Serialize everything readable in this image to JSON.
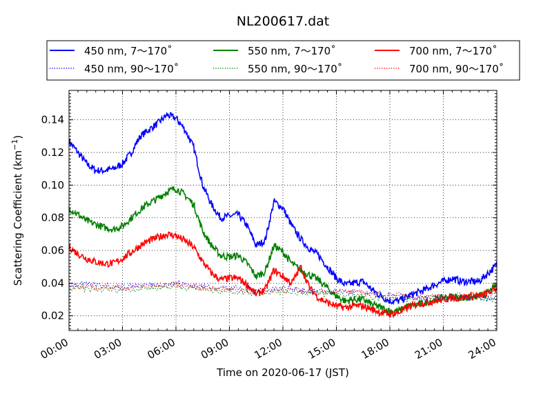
{
  "chart_data": {
    "type": "line",
    "title": "NL200617.dat",
    "xlabel": "Time on 2020-06-17 (JST)",
    "ylabel": "Scattering Coefficient (km",
    "ylabel_sup": "−1",
    "ylabel_close": ")",
    "xlim": [
      0,
      24
    ],
    "ylim": [
      0.011,
      0.158
    ],
    "grid": true,
    "legend_position": "top (above plot)",
    "x_ticks": [
      {
        "value": 0,
        "label": "00:00"
      },
      {
        "value": 3,
        "label": "03:00"
      },
      {
        "value": 6,
        "label": "06:00"
      },
      {
        "value": 9,
        "label": "09:00"
      },
      {
        "value": 12,
        "label": "12:00"
      },
      {
        "value": 15,
        "label": "15:00"
      },
      {
        "value": 18,
        "label": "18:00"
      },
      {
        "value": 21,
        "label": "21:00"
      },
      {
        "value": 24,
        "label": "24:00"
      }
    ],
    "y_ticks": [
      {
        "value": 0.02,
        "label": "0.02"
      },
      {
        "value": 0.04,
        "label": "0.04"
      },
      {
        "value": 0.06,
        "label": "0.06"
      },
      {
        "value": 0.08,
        "label": "0.08"
      },
      {
        "value": 0.1,
        "label": "0.10"
      },
      {
        "value": 0.12,
        "label": "0.12"
      },
      {
        "value": 0.14,
        "label": "0.14"
      }
    ],
    "series": [
      {
        "name": "450 nm, 7～170˚",
        "color": "#0000ff",
        "style": "solid",
        "x": [
          0,
          0.5,
          1,
          1.5,
          2,
          2.5,
          3,
          3.5,
          4,
          4.5,
          5,
          5.5,
          6,
          6.5,
          7,
          7.5,
          8,
          8.5,
          9,
          9.5,
          10,
          10.5,
          11,
          11.5,
          12,
          12.5,
          13,
          13.5,
          14,
          14.5,
          15,
          15.5,
          16,
          16.5,
          17,
          17.5,
          18,
          18.5,
          19,
          19.5,
          20,
          20.5,
          21,
          21.5,
          22,
          22.5,
          23,
          23.5,
          24
        ],
        "y": [
          0.127,
          0.12,
          0.113,
          0.109,
          0.109,
          0.11,
          0.113,
          0.12,
          0.13,
          0.134,
          0.138,
          0.143,
          0.141,
          0.134,
          0.123,
          0.1,
          0.088,
          0.08,
          0.081,
          0.082,
          0.075,
          0.063,
          0.066,
          0.09,
          0.086,
          0.075,
          0.067,
          0.061,
          0.057,
          0.05,
          0.043,
          0.039,
          0.04,
          0.041,
          0.036,
          0.032,
          0.029,
          0.029,
          0.032,
          0.034,
          0.036,
          0.039,
          0.041,
          0.043,
          0.041,
          0.041,
          0.041,
          0.046,
          0.051
        ]
      },
      {
        "name": "550 nm, 7～170˚",
        "color": "#008000",
        "style": "solid",
        "x": [
          0,
          0.5,
          1,
          1.5,
          2,
          2.5,
          3,
          3.5,
          4,
          4.5,
          5,
          5.5,
          6,
          6.5,
          7,
          7.5,
          8,
          8.5,
          9,
          9.5,
          10,
          10.5,
          11,
          11.5,
          12,
          12.5,
          13,
          13.5,
          14,
          14.5,
          15,
          15.5,
          16,
          16.5,
          17,
          17.5,
          18,
          18.5,
          19,
          19.5,
          20,
          20.5,
          21,
          21.5,
          22,
          22.5,
          23,
          23.5,
          24
        ],
        "y": [
          0.086,
          0.082,
          0.078,
          0.076,
          0.074,
          0.073,
          0.075,
          0.08,
          0.085,
          0.089,
          0.092,
          0.096,
          0.098,
          0.094,
          0.088,
          0.072,
          0.063,
          0.057,
          0.056,
          0.057,
          0.052,
          0.044,
          0.047,
          0.063,
          0.059,
          0.052,
          0.048,
          0.045,
          0.042,
          0.037,
          0.032,
          0.029,
          0.03,
          0.03,
          0.027,
          0.025,
          0.023,
          0.023,
          0.026,
          0.027,
          0.028,
          0.03,
          0.031,
          0.032,
          0.031,
          0.031,
          0.032,
          0.034,
          0.039
        ]
      },
      {
        "name": "700 nm, 7～170˚",
        "color": "#ff0000",
        "style": "solid",
        "x": [
          0,
          0.5,
          1,
          1.5,
          2,
          2.5,
          3,
          3.5,
          4,
          4.5,
          5,
          5.5,
          6,
          6.5,
          7,
          7.5,
          8,
          8.5,
          9,
          9.5,
          10,
          10.5,
          11,
          11.5,
          12,
          12.5,
          13,
          13.5,
          14,
          14.5,
          15,
          15.5,
          16,
          16.5,
          17,
          17.5,
          18,
          18.5,
          19,
          19.5,
          20,
          20.5,
          21,
          21.5,
          22,
          22.5,
          23,
          23.5,
          24
        ],
        "y": [
          0.062,
          0.058,
          0.055,
          0.053,
          0.052,
          0.052,
          0.055,
          0.059,
          0.063,
          0.066,
          0.068,
          0.07,
          0.069,
          0.066,
          0.062,
          0.053,
          0.046,
          0.042,
          0.043,
          0.043,
          0.039,
          0.033,
          0.036,
          0.048,
          0.044,
          0.04,
          0.05,
          0.037,
          0.031,
          0.028,
          0.026,
          0.025,
          0.026,
          0.026,
          0.024,
          0.022,
          0.021,
          0.022,
          0.025,
          0.027,
          0.028,
          0.029,
          0.03,
          0.031,
          0.031,
          0.032,
          0.032,
          0.034,
          0.037
        ]
      },
      {
        "name": "450 nm, 90～170˚",
        "color": "#0000ff",
        "style": "dotted",
        "x": [
          0,
          1.5,
          3,
          4.5,
          6,
          7.5,
          9,
          10.5,
          12,
          13.5,
          15,
          16.5,
          18,
          19.5,
          21,
          22.5,
          24
        ],
        "y": [
          0.039,
          0.039,
          0.038,
          0.039,
          0.04,
          0.038,
          0.037,
          0.036,
          0.037,
          0.035,
          0.035,
          0.034,
          0.032,
          0.031,
          0.031,
          0.031,
          0.03
        ]
      },
      {
        "name": "550 nm, 90～170˚",
        "color": "#008000",
        "style": "dotted",
        "x": [
          0,
          1.5,
          3,
          4.5,
          6,
          7.5,
          9,
          10.5,
          12,
          13.5,
          15,
          16.5,
          18,
          19.5,
          21,
          22.5,
          24
        ],
        "y": [
          0.037,
          0.036,
          0.036,
          0.037,
          0.038,
          0.036,
          0.035,
          0.034,
          0.035,
          0.034,
          0.033,
          0.032,
          0.03,
          0.03,
          0.031,
          0.031,
          0.03
        ]
      },
      {
        "name": "700 nm, 90～170˚",
        "color": "#ff0000",
        "style": "dotted",
        "x": [
          0,
          1.5,
          3,
          4.5,
          6,
          7.5,
          9,
          10.5,
          12,
          13.5,
          15,
          16.5,
          18,
          19.5,
          21,
          22.5,
          24
        ],
        "y": [
          0.038,
          0.038,
          0.037,
          0.038,
          0.039,
          0.037,
          0.036,
          0.035,
          0.036,
          0.035,
          0.035,
          0.034,
          0.033,
          0.032,
          0.032,
          0.033,
          0.034
        ]
      }
    ]
  }
}
